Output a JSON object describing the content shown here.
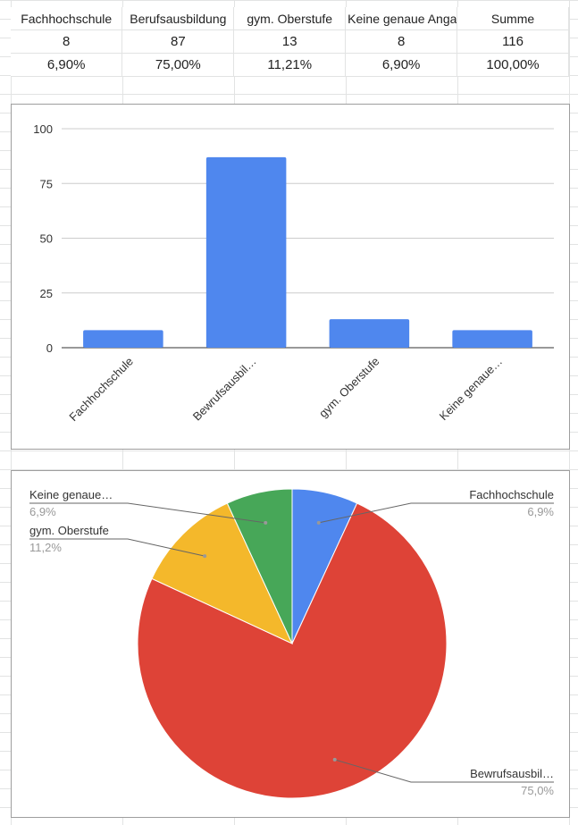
{
  "table": {
    "headers": [
      "Fachhochschule",
      "Berufsausbildung",
      "gym. Oberstufe",
      "Keine genaue Angabe",
      "Summe"
    ],
    "counts": [
      "8",
      "87",
      "13",
      "8",
      "116"
    ],
    "percents": [
      "6,90%",
      "75,00%",
      "11,21%",
      "6,90%",
      "100,00%"
    ]
  },
  "chart_data": [
    {
      "type": "bar",
      "categories": [
        "Fachhochschule",
        "Bewrufsausbil…",
        "gym. Oberstufe",
        "Keine genaue…"
      ],
      "values": [
        8,
        87,
        13,
        8
      ],
      "ylim": [
        0,
        100
      ],
      "yticks": [
        0,
        25,
        50,
        75,
        100
      ],
      "color": "#4f87ee",
      "grid": true
    },
    {
      "type": "pie",
      "labels": [
        "Fachhochschule",
        "Bewrufsausbil…",
        "gym. Oberstufe",
        "Keine genaue…"
      ],
      "values": [
        8,
        87,
        13,
        8
      ],
      "percent_labels": [
        "6,9%",
        "75,0%",
        "11,2%",
        "6,9%"
      ],
      "colors": [
        "#4f87ee",
        "#de4337",
        "#f4b82b",
        "#47a758"
      ]
    }
  ]
}
